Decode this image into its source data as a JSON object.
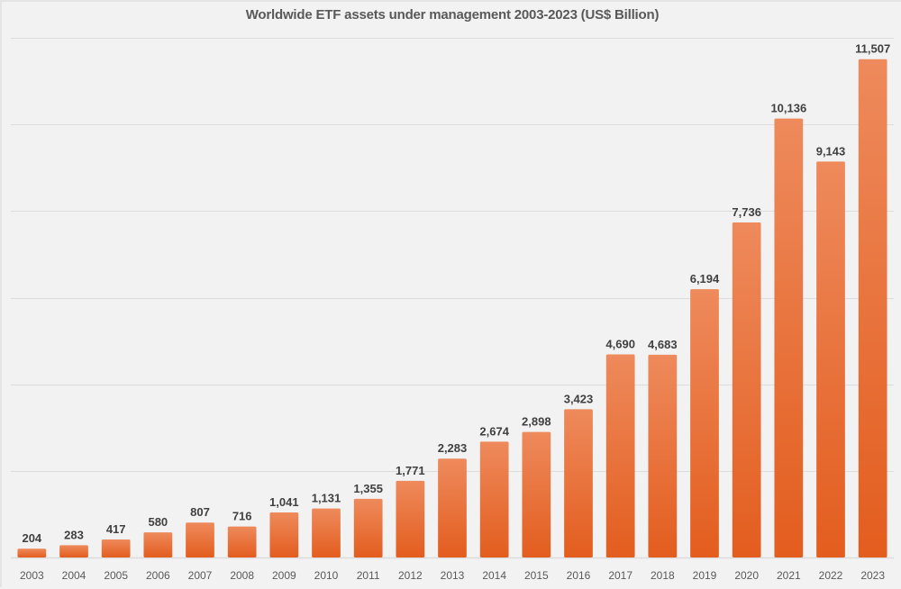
{
  "chart_data": {
    "type": "bar",
    "title": "Worldwide ETF assets under management 2003-2023 (US$ Billion)",
    "xlabel": "",
    "ylabel": "",
    "categories": [
      "2003",
      "2004",
      "2005",
      "2006",
      "2007",
      "2008",
      "2009",
      "2010",
      "2011",
      "2012",
      "2013",
      "2014",
      "2015",
      "2016",
      "2017",
      "2018",
      "2019",
      "2020",
      "2021",
      "2022",
      "2023"
    ],
    "values": [
      204,
      283,
      417,
      580,
      807,
      716,
      1041,
      1131,
      1355,
      1771,
      2283,
      2674,
      2898,
      3423,
      4690,
      4683,
      6194,
      7736,
      10136,
      9143,
      11507
    ],
    "data_labels": [
      "204",
      "283",
      "417",
      "580",
      "807",
      "716",
      "1,041",
      "1,131",
      "1,355",
      "1,771",
      "2,283",
      "2,674",
      "2,898",
      "3,423",
      "4,690",
      "4,683",
      "6,194",
      "7,736",
      "10,136",
      "9,143",
      "11,507"
    ],
    "ylim": [
      0,
      12000
    ],
    "gridline_step": 2000,
    "grid": true,
    "y_tick_labels_shown": false,
    "legend": "none",
    "colors": {
      "bar_top": "#ee8a5c",
      "bar_bottom": "#e35d1e",
      "background": "#f2f2f2",
      "grid": "#dcdcdc",
      "label": "#404040"
    }
  }
}
